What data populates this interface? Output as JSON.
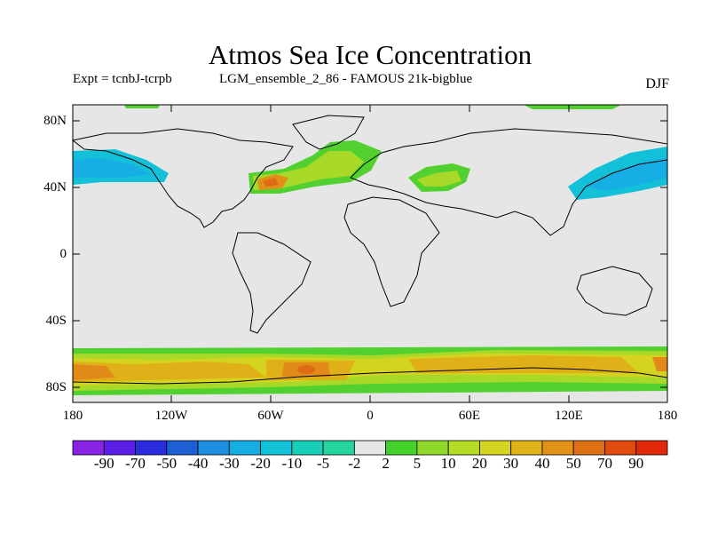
{
  "title": "Atmos Sea Ice Concentration",
  "subtitle_left": "Expt = tcnbJ-tcrpb",
  "subtitle_mid": "LGM_ensemble_2_86 - FAMOUS 21k-bigblue",
  "season": "DJF",
  "lat_ticks": [
    "80N",
    "40N",
    "0",
    "40S",
    "80S"
  ],
  "lon_ticks": [
    "180",
    "120W",
    "60W",
    "0",
    "60E",
    "120E",
    "180"
  ],
  "colorbar": {
    "labels": [
      "-90",
      "-70",
      "-50",
      "-40",
      "-30",
      "-20",
      "-10",
      "-5",
      "-2",
      "2",
      "5",
      "10",
      "20",
      "30",
      "40",
      "50",
      "70",
      "90"
    ],
    "colors": [
      "#8a22e6",
      "#5a1ee6",
      "#2a2ee0",
      "#1f5fd6",
      "#1f8ee0",
      "#17aee6",
      "#12c0d8",
      "#16cdb8",
      "#24d5a0",
      "#e6e6e6",
      "#44d22a",
      "#8ed82a",
      "#b5dc24",
      "#d6d420",
      "#e0b418",
      "#e29018",
      "#e07014",
      "#e04c0e",
      "#e02a0a"
    ]
  }
}
